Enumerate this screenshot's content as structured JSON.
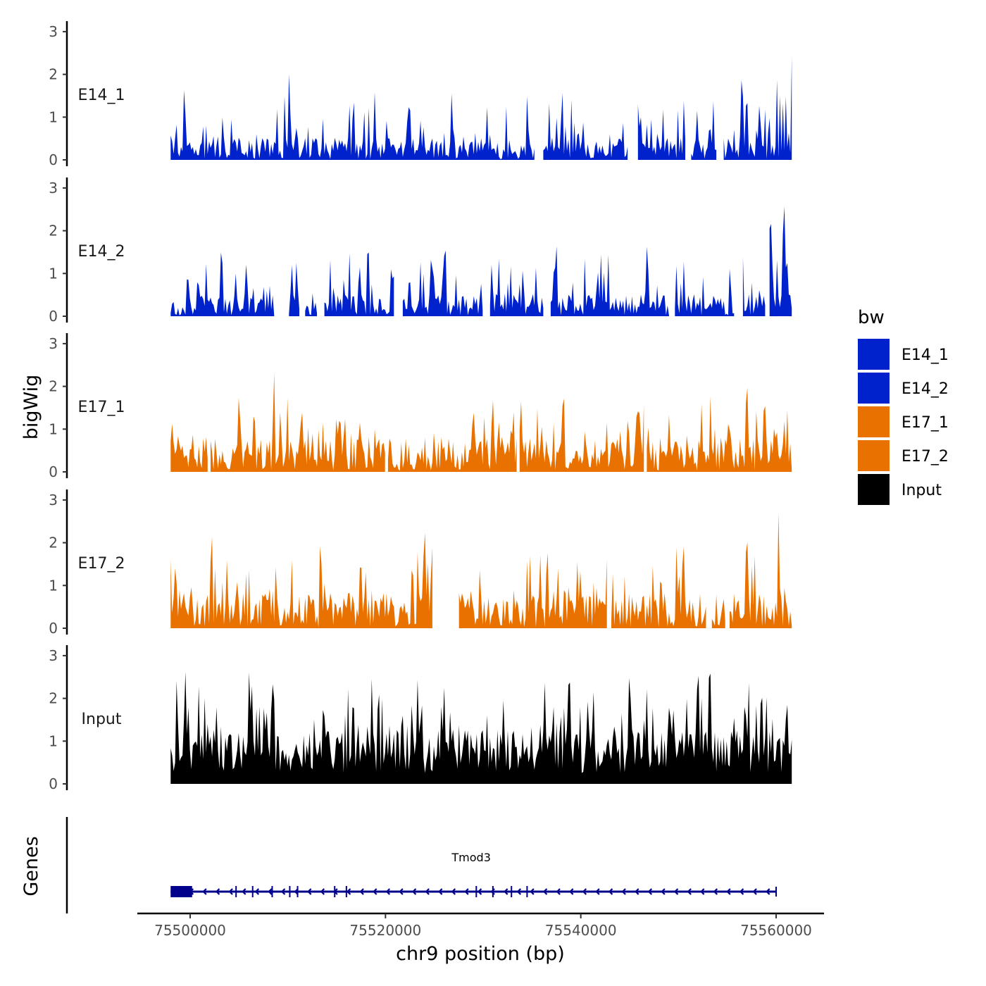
{
  "chart_data": {
    "type": "area",
    "chromosome": "chr9",
    "region": [
      75498000,
      75561600
    ],
    "ylabel": "bigWig",
    "xlabel": "chr9 position (bp)",
    "genes_label": "Genes",
    "x_ticks": [
      75500000,
      75520000,
      75540000,
      75560000
    ],
    "x_tick_labels": [
      "75500000",
      "75520000",
      "75540000",
      "75560000"
    ],
    "y_ticks": [
      0,
      1,
      2,
      3
    ],
    "y_tick_labels": [
      "0",
      "1",
      "2",
      "3"
    ],
    "ylim": [
      0,
      3.2
    ],
    "legend": {
      "title": "bw",
      "entries": [
        {
          "label": "E14_1",
          "color": "#0022CC"
        },
        {
          "label": "E14_2",
          "color": "#0022CC"
        },
        {
          "label": "E17_1",
          "color": "#E87100"
        },
        {
          "label": "E17_2",
          "color": "#E87100"
        },
        {
          "label": "Input",
          "color": "#000000"
        }
      ]
    },
    "tracks": [
      {
        "name": "E14_1",
        "color": "#0022CC",
        "peaks": [
          [
            75499300,
            1.9
          ],
          [
            75512000,
            1.1
          ],
          [
            75530500,
            1.85
          ],
          [
            75534500,
            1.5
          ],
          [
            75548500,
            1.6
          ],
          [
            75550500,
            1.6
          ],
          [
            75556500,
            2.1
          ],
          [
            75558300,
            1.4
          ],
          [
            75560000,
            2.55
          ],
          [
            75561600,
            2.5
          ]
        ],
        "gaps": [
          [
            75535300,
            75536100
          ],
          [
            75544900,
            75545700
          ],
          [
            75550800,
            75551200
          ],
          [
            75554000,
            75554500
          ]
        ]
      },
      {
        "name": "E14_2",
        "color": "#0022CC",
        "peaks": [
          [
            75503200,
            1.8
          ],
          [
            75508000,
            1.4
          ],
          [
            75520800,
            1.2
          ],
          [
            75524700,
            1.6
          ],
          [
            75526100,
            1.85
          ],
          [
            75537500,
            1.9
          ],
          [
            75546800,
            1.8
          ],
          [
            75556400,
            2.3
          ],
          [
            75559400,
            2.8
          ],
          [
            75560800,
            2.8
          ]
        ],
        "gaps": [
          [
            75508700,
            75510000
          ],
          [
            75511200,
            75511700
          ],
          [
            75513000,
            75513600
          ],
          [
            75520900,
            75521700
          ],
          [
            75530000,
            75530700
          ],
          [
            75536200,
            75536900
          ],
          [
            75549100,
            75549600
          ],
          [
            75555800,
            75556500
          ],
          [
            75558900,
            75559200
          ]
        ]
      },
      {
        "name": "E17_1",
        "color": "#E87100",
        "peaks": [
          [
            75508600,
            2.5
          ],
          [
            75505000,
            1.9
          ],
          [
            75515000,
            1.3
          ],
          [
            75529000,
            1.6
          ],
          [
            75538200,
            2.1
          ],
          [
            75546000,
            1.6
          ],
          [
            75557000,
            2.3
          ],
          [
            75558800,
            1.9
          ],
          [
            75561000,
            2.95
          ]
        ],
        "gaps": [
          [
            75501800,
            75502000
          ],
          [
            75520000,
            75520200
          ],
          [
            75533500,
            75533700
          ],
          [
            75546500,
            75546700
          ]
        ]
      },
      {
        "name": "E17_2",
        "color": "#E87100",
        "peaks": [
          [
            75502200,
            2.55
          ],
          [
            75505600,
            2.3
          ],
          [
            75508300,
            2.0
          ],
          [
            75524000,
            2.45
          ],
          [
            75527000,
            2.4
          ],
          [
            75542700,
            1.6
          ],
          [
            75550500,
            2.2
          ],
          [
            75557000,
            2.5
          ],
          [
            75560200,
            2.9
          ]
        ],
        "gaps": [
          [
            75524900,
            75527400
          ],
          [
            75542800,
            75543000
          ],
          [
            75552900,
            75553400
          ],
          [
            75554800,
            75555200
          ]
        ]
      },
      {
        "name": "Input",
        "color": "#000000",
        "peaks": [
          [
            75499500,
            2.75
          ],
          [
            75508400,
            2.7
          ],
          [
            75516700,
            2.25
          ],
          [
            75526000,
            2.5
          ],
          [
            75536300,
            2.6
          ],
          [
            75545000,
            2.75
          ],
          [
            75552000,
            3.05
          ],
          [
            75553200,
            3.05
          ],
          [
            75558500,
            2.6
          ]
        ],
        "gaps": []
      }
    ],
    "genes": [
      {
        "name": "Tmod3",
        "start": 75498000,
        "end": 75560000,
        "strand": "-",
        "color": "#00008B",
        "utr_start": 75498000,
        "utr_end": 75500200,
        "exons": [
          75504700,
          75506400,
          75508400,
          75510200,
          75511000,
          75514800,
          75516000,
          75529300,
          75531000,
          75532900,
          75534500
        ]
      }
    ]
  }
}
